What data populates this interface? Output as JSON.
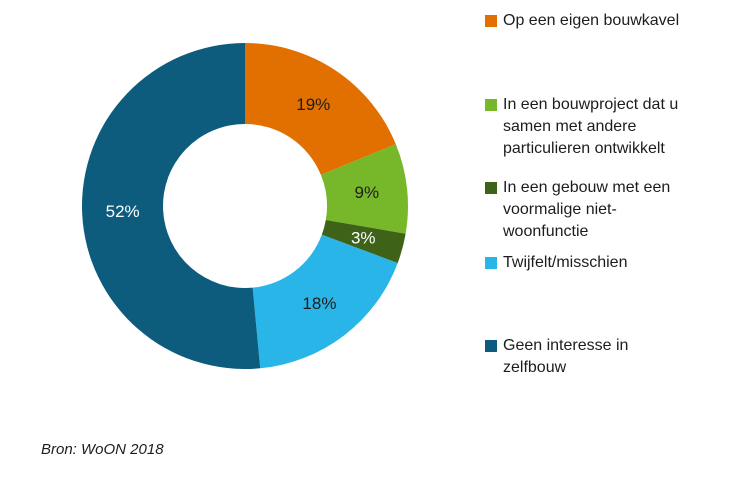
{
  "chart_data": {
    "type": "pie",
    "subtype": "donut",
    "title": "",
    "legend_position": "right",
    "start_angle_deg": 0,
    "direction": "clockwise",
    "donut_hole_ratio": 0.5,
    "slices": [
      {
        "label": "Op een eigen bouwkavel",
        "value": 19,
        "pct_label": "19%",
        "color": "#e17000",
        "pct_text_color": "#1d1d1b"
      },
      {
        "label": "In een bouwproject dat u\nsamen met andere\nparticulieren ontwikkelt",
        "value": 9,
        "pct_label": "9%",
        "color": "#76b82a",
        "pct_text_color": "#1d1d1b"
      },
      {
        "label": "In een gebouw met een\nvoormalige niet-\nwoonfunctie",
        "value": 3,
        "pct_label": "3%",
        "color": "#3e6318",
        "pct_text_color": "#ffffff"
      },
      {
        "label": "Twijfelt/misschien",
        "value": 18,
        "pct_label": "18%",
        "color": "#29b5e8",
        "pct_text_color": "#1d1d1b"
      },
      {
        "label": "Geen interesse in\nzelfbouw",
        "value": 52,
        "pct_label": "52%",
        "color": "#0d5c7d",
        "pct_text_color": "#ffffff"
      }
    ],
    "source": "Bron: WoON 2018"
  }
}
